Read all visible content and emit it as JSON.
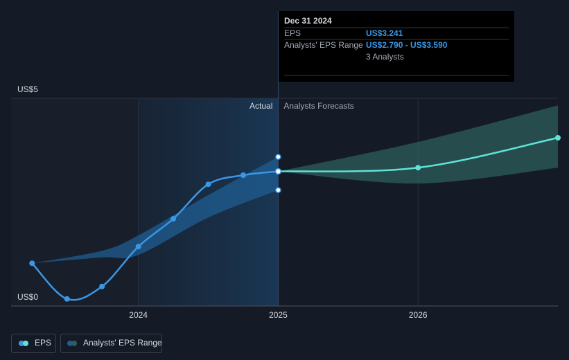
{
  "chart_data": {
    "type": "line",
    "divider_labels": [
      "Actual",
      "Analysts Forecasts"
    ],
    "tooltip": {
      "date": "Dec 31 2024",
      "rows": [
        [
          "EPS",
          "US$3.241"
        ],
        [
          "Analysts' EPS Range",
          "US$2.790 - US$3.590"
        ],
        [
          "",
          "3 Analysts"
        ]
      ]
    },
    "xlim": [
      2023.09,
      2027.0
    ],
    "xticks": [
      2024,
      2025,
      2026
    ],
    "ylim": [
      0,
      5
    ],
    "yticks": [
      {
        "value": 0,
        "label": "US$0"
      },
      {
        "value": 5,
        "label": "US$5"
      }
    ],
    "grid": true,
    "series": [
      {
        "name": "EPS",
        "color": "#3a97e6",
        "x": [
          2023.24,
          2023.49,
          2023.74,
          2024.0,
          2024.25,
          2024.5,
          2024.75,
          2025.0
        ],
        "values": [
          1.03,
          0.17,
          0.47,
          1.43,
          2.1,
          2.93,
          3.15,
          3.241
        ]
      },
      {
        "name": "Analysts' EPS Range",
        "color": "#2e5e5c",
        "x": [
          2025.0,
          2026.0,
          2027.0
        ],
        "low": [
          3.241,
          2.95,
          3.33
        ],
        "high": [
          3.241,
          3.95,
          4.83
        ]
      }
    ],
    "actual_range": {
      "color": "#1f5d92",
      "x": [
        2023.24,
        2023.74,
        2024.0,
        2024.5,
        2025.0
      ],
      "low": [
        1.03,
        1.17,
        1.23,
        2.13,
        2.79
      ],
      "high": [
        1.03,
        1.33,
        1.7,
        2.67,
        3.59
      ]
    },
    "forecast": {
      "color": "#5fe3d6",
      "x": [
        2025.0,
        2026.0,
        2027.0
      ],
      "values": [
        3.241,
        3.33,
        4.05
      ]
    }
  }
}
